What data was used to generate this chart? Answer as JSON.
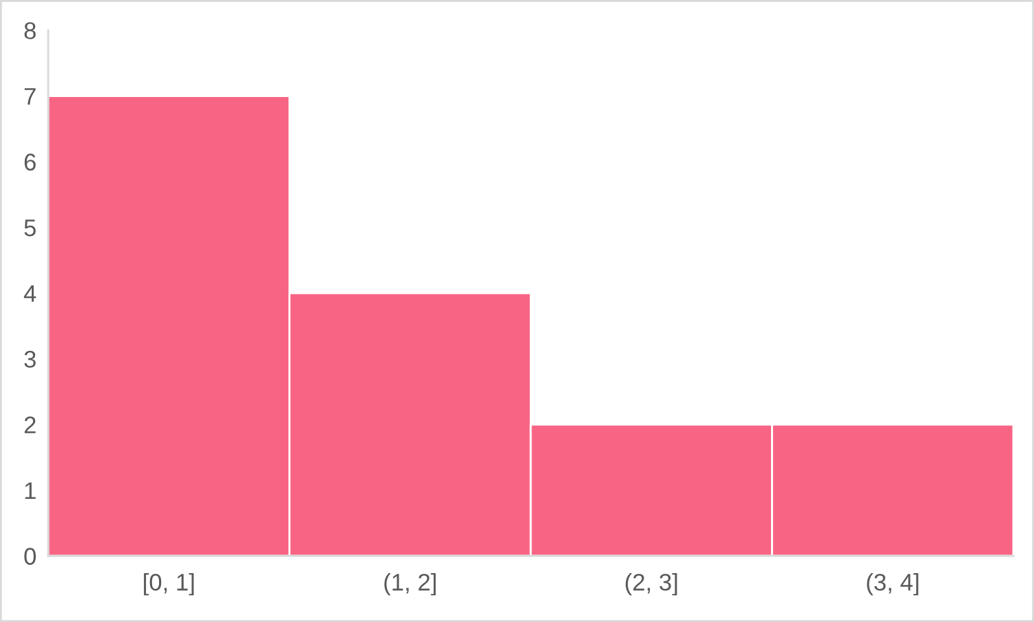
{
  "chart_data": {
    "type": "bar",
    "categories": [
      "[0, 1]",
      "(1, 2]",
      "(2, 3]",
      "(3, 4]"
    ],
    "values": [
      7,
      4,
      2,
      2
    ],
    "color": "#f86584",
    "ylim": [
      0,
      8
    ],
    "yticks": [
      0,
      1,
      2,
      3,
      4,
      5,
      6,
      7,
      8
    ]
  }
}
